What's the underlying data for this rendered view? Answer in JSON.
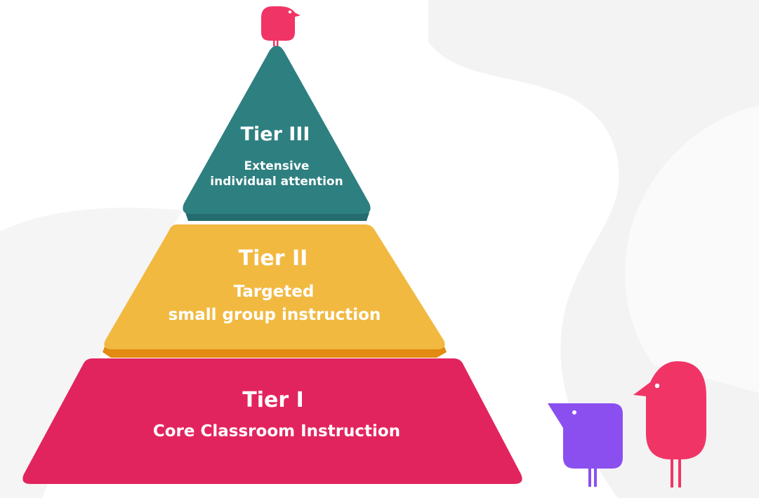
{
  "colors": {
    "tier1": "#e2245e",
    "tier2": "#f2b941",
    "tier2_shadow": "#e28a12",
    "tier3": "#2e7f80",
    "tier3_shadow": "#246c6d",
    "bird_pink": "#f13466",
    "bird_purple": "#8b4ff0",
    "background_blob": "#f3f3f3",
    "text": "#ffffff"
  },
  "pyramid": {
    "tier3": {
      "title": "Tier III",
      "line1": "Extensive",
      "line2": "individual attention"
    },
    "tier2": {
      "title": "Tier II",
      "line1": "Targeted",
      "line2": "small group instruction"
    },
    "tier1": {
      "title": "Tier I",
      "line1": "Core Classroom Instruction"
    }
  },
  "icons": [
    "bird-icon-top",
    "bird-icon-purple",
    "bird-icon-pink"
  ]
}
